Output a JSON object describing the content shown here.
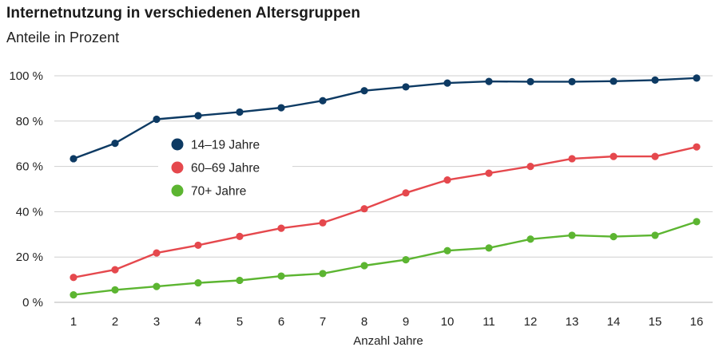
{
  "chart_data": {
    "type": "line",
    "title": "Internetnutzung in verschiedenen Altersgruppen",
    "subtitle": "Anteile in Prozent",
    "xlabel": "Anzahl Jahre",
    "ylabel": "",
    "x": [
      1,
      2,
      3,
      4,
      5,
      6,
      7,
      8,
      9,
      10,
      11,
      12,
      13,
      14,
      15,
      16
    ],
    "ylim": [
      0,
      100
    ],
    "yticks": [
      0,
      20,
      40,
      60,
      80,
      100
    ],
    "ytick_labels": [
      "0 %",
      "20 %",
      "40 %",
      "60 %",
      "80 %",
      "100 %"
    ],
    "grid": "horizontal",
    "legend_position": "inside-left",
    "series": [
      {
        "name": "14–19 Jahre",
        "color": "#0d3a63",
        "values": [
          63.4,
          70.2,
          80.8,
          82.4,
          84.0,
          85.9,
          89.0,
          93.4,
          95.1,
          96.8,
          97.5,
          97.4,
          97.4,
          97.6,
          98.1,
          99.0
        ]
      },
      {
        "name": "60–69 Jahre",
        "color": "#e5484d",
        "values": [
          11.0,
          14.4,
          21.8,
          25.2,
          29.1,
          32.7,
          35.1,
          41.3,
          48.3,
          54.0,
          57.0,
          60.0,
          63.4,
          64.4,
          64.4,
          68.6
        ]
      },
      {
        "name": "70+ Jahre",
        "color": "#5cb531",
        "values": [
          3.3,
          5.5,
          7.0,
          8.6,
          9.7,
          11.6,
          12.7,
          16.2,
          18.8,
          22.8,
          24.0,
          27.9,
          29.6,
          29.0,
          29.6,
          35.6
        ]
      }
    ]
  }
}
